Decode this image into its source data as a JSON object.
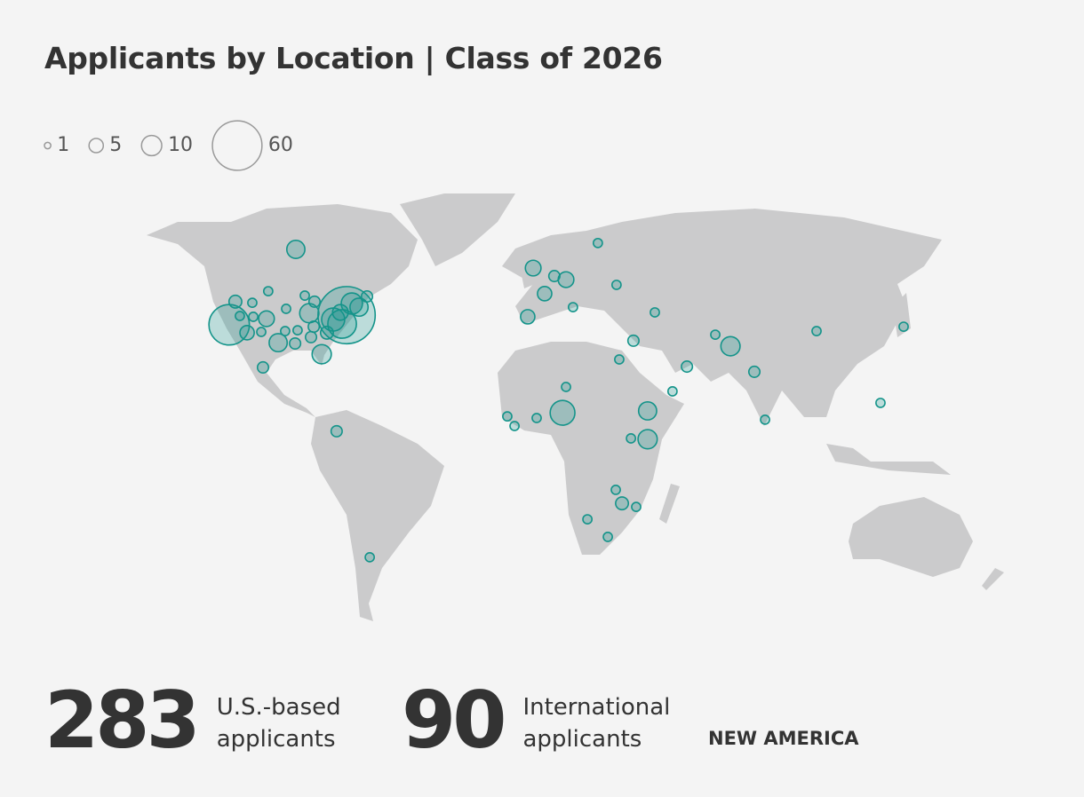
{
  "title": "Applicants by Location | Class of 2026",
  "legend": {
    "sizes": [
      1,
      5,
      10,
      60
    ]
  },
  "bubbles": {
    "color": "#14948a",
    "points": [
      {
        "lon": -91.8,
        "lat": 64.2,
        "value": 8
      },
      {
        "lon": -71.4,
        "lat": 40.3,
        "value": 80
      },
      {
        "lon": -118.6,
        "lat": 36.8,
        "value": 40
      },
      {
        "lon": -116.1,
        "lat": 45.2,
        "value": 4
      },
      {
        "lon": -109.3,
        "lat": 44.8,
        "value": 2
      },
      {
        "lon": -102.9,
        "lat": 49.0,
        "value": 2
      },
      {
        "lon": -114.3,
        "lat": 40.0,
        "value": 2
      },
      {
        "lon": -108.9,
        "lat": 39.7,
        "value": 2
      },
      {
        "lon": -103.6,
        "lat": 39.0,
        "value": 6
      },
      {
        "lon": -111.4,
        "lat": 33.9,
        "value": 5
      },
      {
        "lon": -105.7,
        "lat": 34.2,
        "value": 2
      },
      {
        "lon": -98.9,
        "lat": 30.3,
        "value": 8
      },
      {
        "lon": -96.1,
        "lat": 34.5,
        "value": 2
      },
      {
        "lon": -92.1,
        "lat": 30.0,
        "value": 3
      },
      {
        "lon": -91.1,
        "lat": 34.8,
        "value": 2
      },
      {
        "lon": -95.7,
        "lat": 42.6,
        "value": 2
      },
      {
        "lon": -88.2,
        "lat": 47.4,
        "value": 2
      },
      {
        "lon": -86.4,
        "lat": 41.0,
        "value": 9
      },
      {
        "lon": -84.3,
        "lat": 45.2,
        "value": 3
      },
      {
        "lon": -84.6,
        "lat": 36.1,
        "value": 3
      },
      {
        "lon": -85.7,
        "lat": 32.3,
        "value": 3
      },
      {
        "lon": -81.4,
        "lat": 26.1,
        "value": 9
      },
      {
        "lon": -79.3,
        "lat": 33.9,
        "value": 4
      },
      {
        "lon": -76.8,
        "lat": 38.7,
        "value": 13
      },
      {
        "lon": -73.2,
        "lat": 37.1,
        "value": 20
      },
      {
        "lon": -73.9,
        "lat": 41.3,
        "value": 6
      },
      {
        "lon": -69.3,
        "lat": 44.5,
        "value": 11
      },
      {
        "lon": -66.4,
        "lat": 43.2,
        "value": 8
      },
      {
        "lon": -63.2,
        "lat": 47.1,
        "value": 3
      },
      {
        "lon": -105.0,
        "lat": 21.3,
        "value": 3
      },
      {
        "lon": -75.4,
        "lat": -1.9,
        "value": 3
      },
      {
        "lon": -62.1,
        "lat": -47.7,
        "value": 2
      },
      {
        "lon": 3.6,
        "lat": 57.4,
        "value": 6
      },
      {
        "lon": 12.1,
        "lat": 54.5,
        "value": 3
      },
      {
        "lon": 16.8,
        "lat": 53.2,
        "value": 6
      },
      {
        "lon": 8.2,
        "lat": 48.1,
        "value": 5
      },
      {
        "lon": 1.4,
        "lat": 39.7,
        "value": 5
      },
      {
        "lon": 19.6,
        "lat": 43.2,
        "value": 2
      },
      {
        "lon": 29.6,
        "lat": 66.5,
        "value": 2
      },
      {
        "lon": 37.1,
        "lat": 51.3,
        "value": 2
      },
      {
        "lon": 52.5,
        "lat": 41.3,
        "value": 2
      },
      {
        "lon": 43.9,
        "lat": 31.0,
        "value": 3
      },
      {
        "lon": 38.2,
        "lat": 24.2,
        "value": 2
      },
      {
        "lon": 65.4,
        "lat": 21.6,
        "value": 3
      },
      {
        "lon": 76.8,
        "lat": 33.2,
        "value": 2
      },
      {
        "lon": 82.9,
        "lat": 29.0,
        "value": 9
      },
      {
        "lon": 92.5,
        "lat": 19.7,
        "value": 3
      },
      {
        "lon": 117.5,
        "lat": 34.5,
        "value": 2
      },
      {
        "lon": 152.5,
        "lat": 36.1,
        "value": 2
      },
      {
        "lon": 143.2,
        "lat": 8.4,
        "value": 2
      },
      {
        "lon": 96.8,
        "lat": 2.3,
        "value": 2
      },
      {
        "lon": 59.6,
        "lat": 12.6,
        "value": 2
      },
      {
        "lon": 16.8,
        "lat": 14.2,
        "value": 2
      },
      {
        "lon": 15.4,
        "lat": 4.8,
        "value": 15
      },
      {
        "lon": 5.0,
        "lat": 2.9,
        "value": 2
      },
      {
        "lon": -6.8,
        "lat": 3.5,
        "value": 2
      },
      {
        "lon": -3.9,
        "lat": 0.0,
        "value": 2
      },
      {
        "lon": 49.6,
        "lat": 5.5,
        "value": 8
      },
      {
        "lon": 49.6,
        "lat": -4.8,
        "value": 9
      },
      {
        "lon": 42.9,
        "lat": -4.5,
        "value": 2
      },
      {
        "lon": 36.8,
        "lat": -23.2,
        "value": 2
      },
      {
        "lon": 39.3,
        "lat": -28.1,
        "value": 4
      },
      {
        "lon": 45.0,
        "lat": -29.4,
        "value": 2
      },
      {
        "lon": 25.4,
        "lat": -33.9,
        "value": 2
      },
      {
        "lon": 33.6,
        "lat": -40.3,
        "value": 2
      }
    ]
  },
  "stats": [
    {
      "value": 283,
      "label": "U.S.-based applicants"
    },
    {
      "value": 90,
      "label": "International applicants"
    }
  ],
  "brand": "NEW AMERICA"
}
